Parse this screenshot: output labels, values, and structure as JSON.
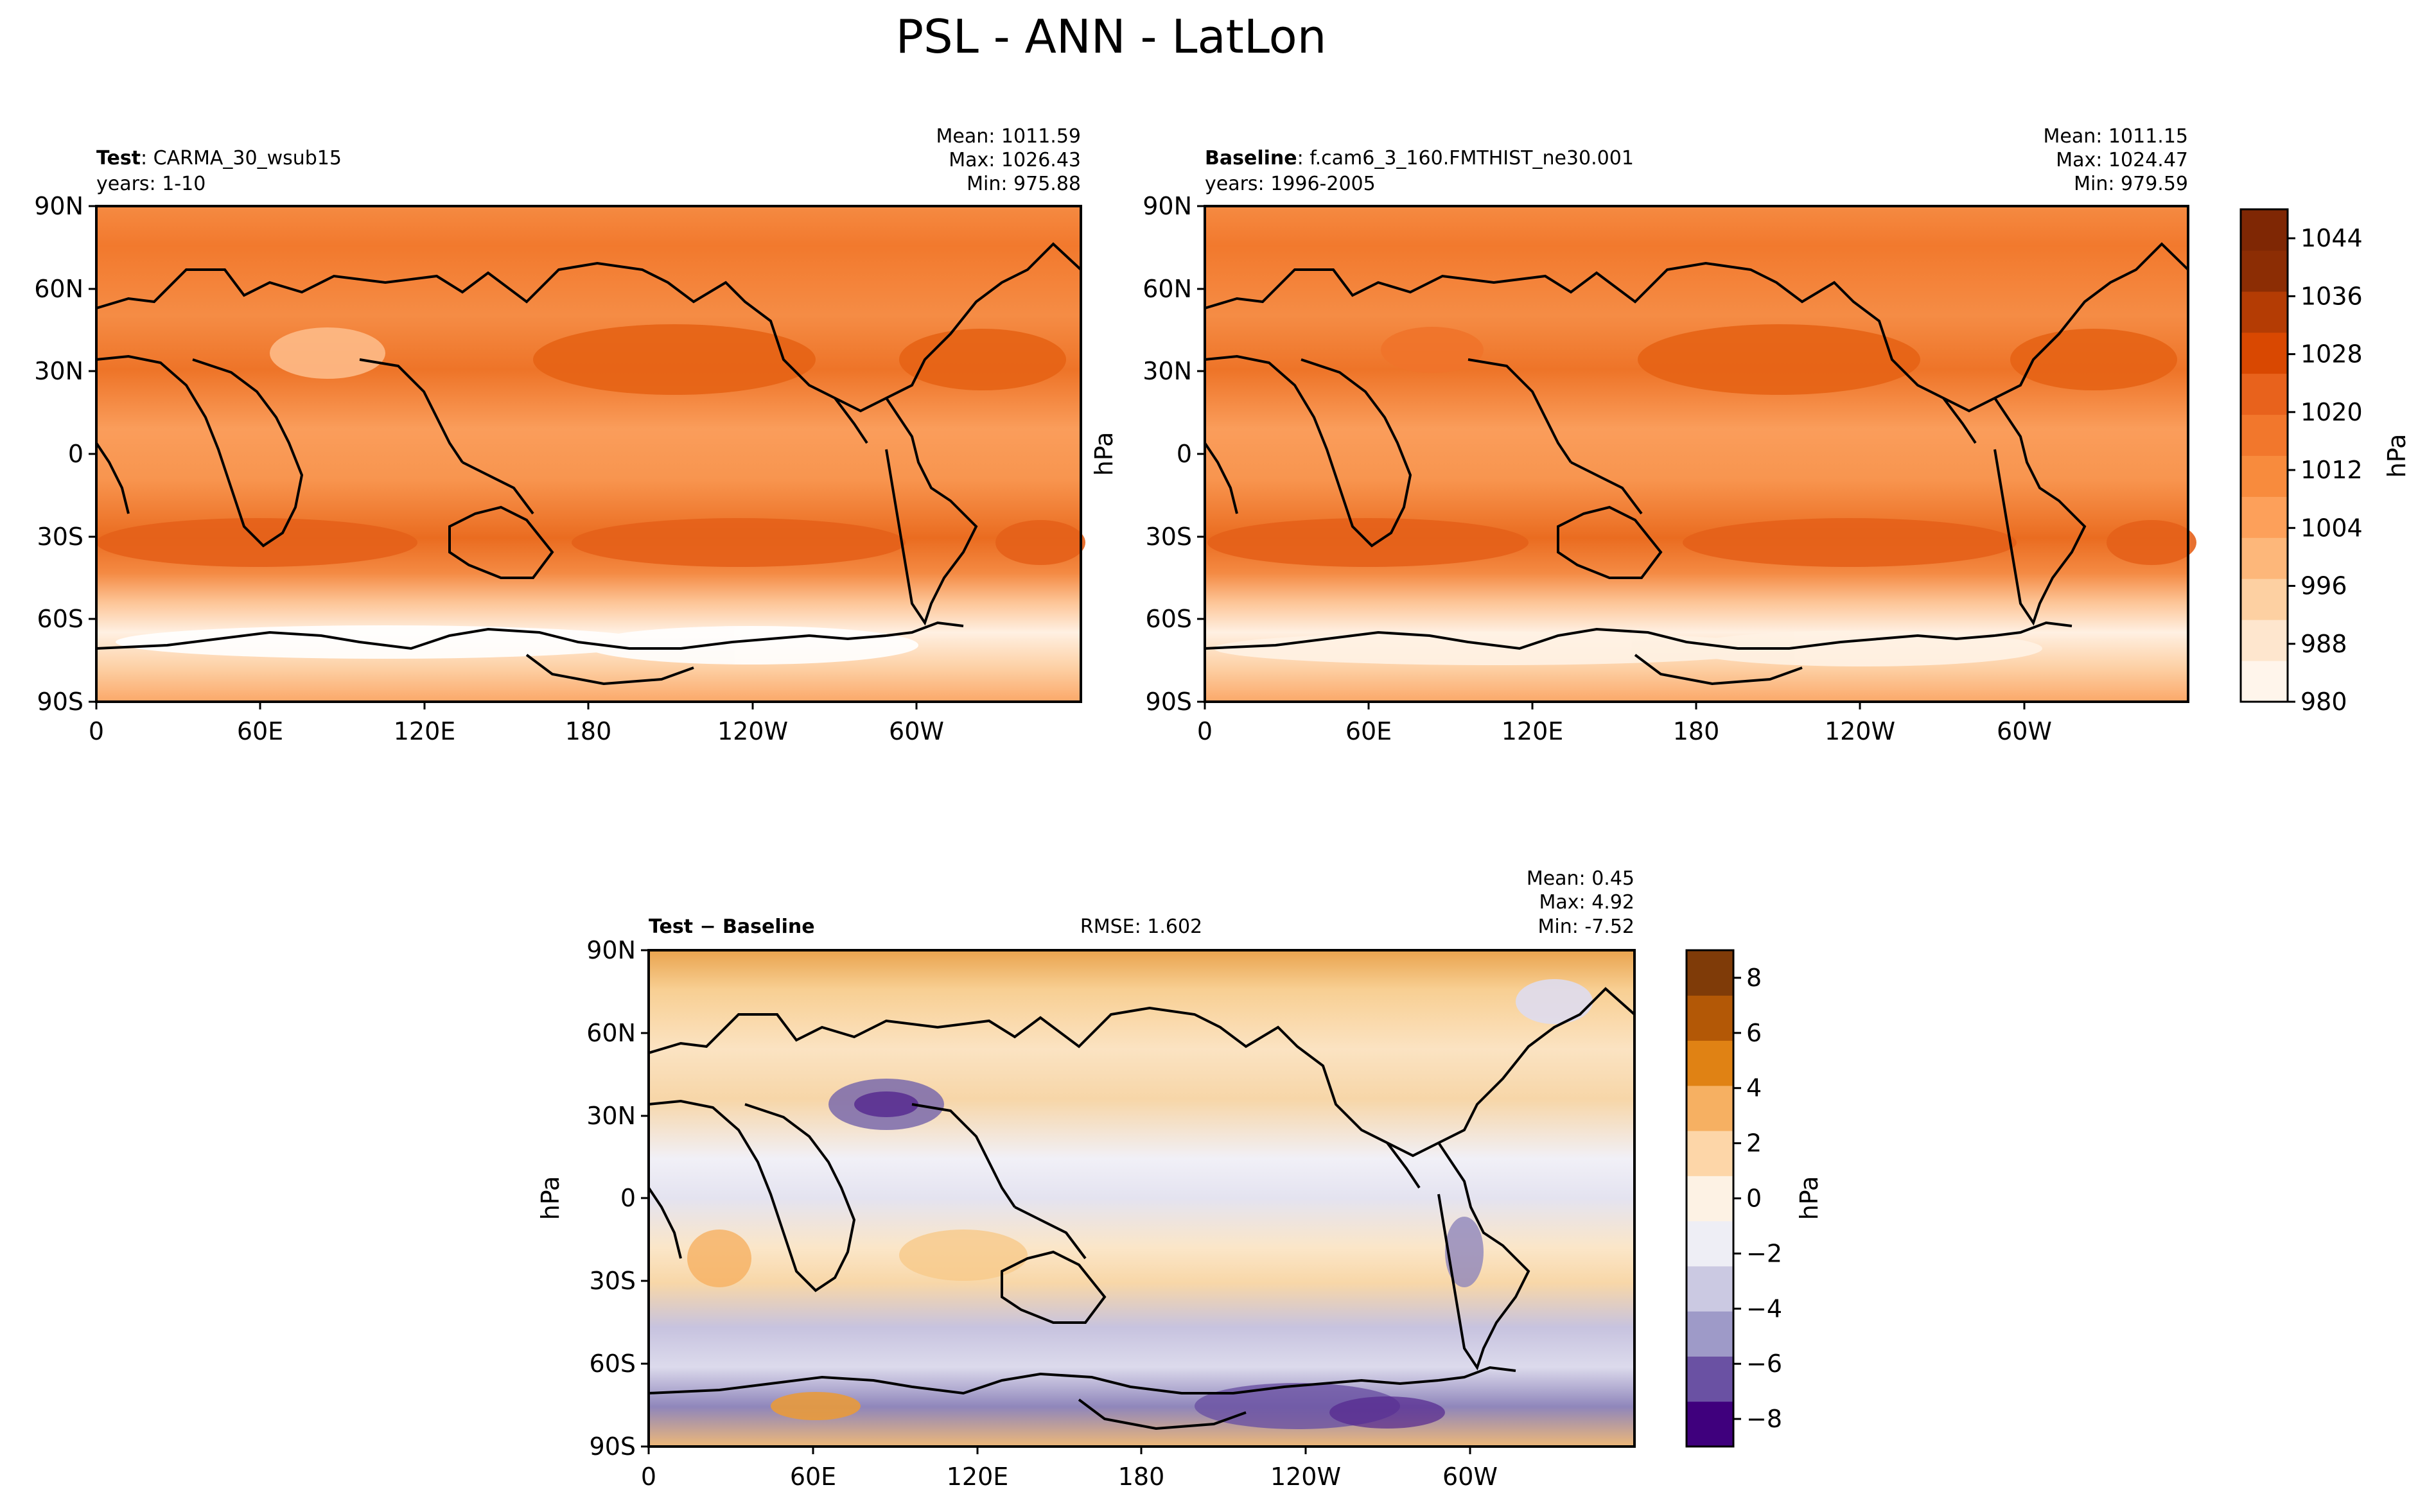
{
  "figure": {
    "title": "PSL - ANN - LatLon"
  },
  "colors": {
    "test_baseline_colormap": [
      "#fff5eb",
      "#fee6ce",
      "#fdd0a2",
      "#fdb77a",
      "#fda05a",
      "#f88b3d",
      "#f2772c",
      "#e8621c",
      "#d94801",
      "#b43c04",
      "#8c2d04",
      "#7f2704"
    ],
    "diff_colormap": [
      "#3f007d",
      "#6a51a3",
      "#9e9ac8",
      "#cbc9e2",
      "#eeeef5",
      "#fdf2e4",
      "#fdd6a8",
      "#f6b062",
      "#e08214",
      "#b35806",
      "#7f3b08"
    ],
    "coastline": "#000000"
  },
  "icons": {
    "coastlines": "coastline-lines"
  },
  "panels": {
    "test": {
      "label": "Test",
      "name": ": CARMA_30_wsub15",
      "years": "years: 1-10",
      "mean": "Mean: 1011.59",
      "max": "Max: 1026.43",
      "min": "Min: 975.88"
    },
    "baseline": {
      "label": "Baseline",
      "name": ": f.cam6_3_160.FMTHIST_ne30.001",
      "years": "years: 1996-2005",
      "mean": "Mean: 1011.15",
      "max": "Max: 1024.47",
      "min": "Min: 979.59",
      "ylabel": "hPa"
    },
    "diff": {
      "label": "Test − Baseline",
      "rmse": "RMSE: 1.602",
      "mean": "Mean:  0.45",
      "max": "Max:  4.92",
      "min": "Min: -7.52",
      "ylabel": "hPa"
    }
  },
  "axes": {
    "lat_ticks": [
      "90N",
      "60N",
      "30N",
      "0",
      "30S",
      "60S",
      "90S"
    ],
    "lon_ticks": [
      "0",
      "60E",
      "120E",
      "180",
      "120W",
      "60W"
    ]
  },
  "colorbars": {
    "main": {
      "unit": "hPa",
      "ticks": [
        "1044",
        "1036",
        "1028",
        "1020",
        "1012",
        "1004",
        "996",
        "988",
        "980"
      ],
      "range": [
        980,
        1048
      ]
    },
    "diff": {
      "unit": "hPa",
      "ticks": [
        "8",
        "6",
        "4",
        "2",
        "0",
        "−2",
        "−4",
        "−6",
        "−8"
      ],
      "range": [
        -9,
        9
      ]
    }
  },
  "chart_data": [
    {
      "type": "heatmap",
      "title": "",
      "subtitle": "Test: CARMA_30_wsub15, years: 1-10",
      "xlabel": "",
      "ylabel": "",
      "x_range": [
        0,
        360
      ],
      "y_range": [
        -90,
        90
      ],
      "stats": {
        "mean": 1011.59,
        "max": 1026.43,
        "min": 975.88
      },
      "colorbar_units": "hPa"
    },
    {
      "type": "heatmap",
      "title": "",
      "subtitle": "Baseline: f.cam6_3_160.FMTHIST_ne30.001, years: 1996-2005",
      "xlabel": "",
      "ylabel": "hPa",
      "x_range": [
        0,
        360
      ],
      "y_range": [
        -90,
        90
      ],
      "stats": {
        "mean": 1011.15,
        "max": 1024.47,
        "min": 979.59
      },
      "colorbar_units": "hPa"
    },
    {
      "type": "heatmap",
      "title": "",
      "subtitle": "Test − Baseline",
      "xlabel": "",
      "ylabel": "hPa",
      "x_range": [
        0,
        360
      ],
      "y_range": [
        -90,
        90
      ],
      "stats": {
        "mean": 0.45,
        "max": 4.92,
        "min": -7.52,
        "rmse": 1.602
      },
      "colorbar_units": "hPa"
    }
  ]
}
